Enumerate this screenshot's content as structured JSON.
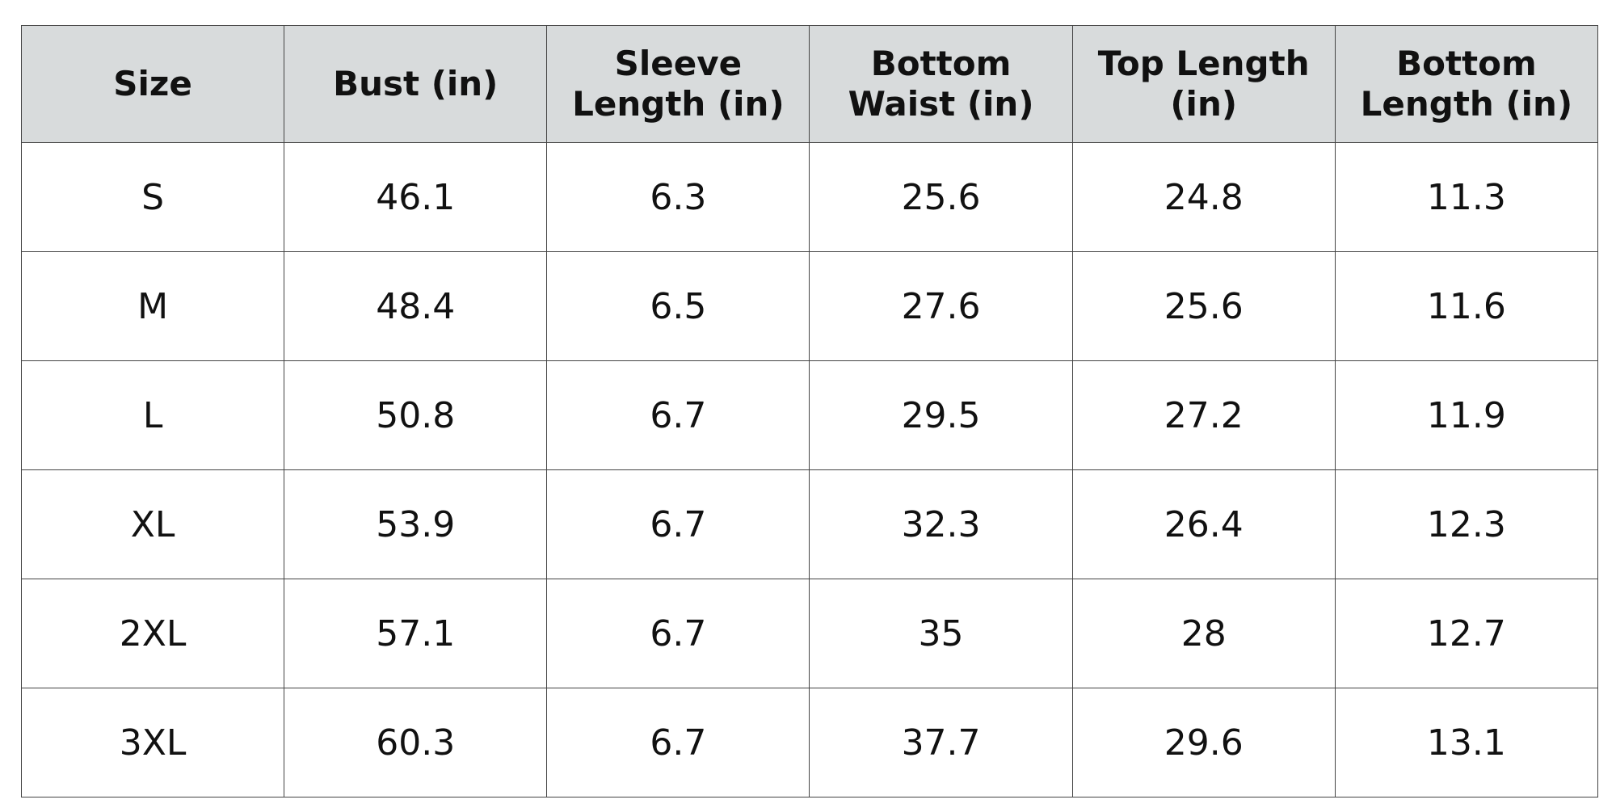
{
  "table": {
    "headers": [
      "Size",
      "Bust (in)",
      "Sleeve Length (in)",
      "Bottom Waist (in)",
      "Top Length (in)",
      "Bottom Length (in)"
    ],
    "rows": [
      [
        "S",
        46.1,
        6.3,
        25.6,
        24.8,
        11.3
      ],
      [
        "M",
        48.4,
        6.5,
        27.6,
        25.6,
        11.6
      ],
      [
        "L",
        50.8,
        6.7,
        29.5,
        27.2,
        11.9
      ],
      [
        "XL",
        53.9,
        6.7,
        32.3,
        26.4,
        12.3
      ],
      [
        "2XL",
        57.1,
        6.7,
        35,
        28,
        12.7
      ],
      [
        "3XL",
        60.3,
        6.7,
        37.7,
        29.6,
        13.1
      ]
    ]
  }
}
